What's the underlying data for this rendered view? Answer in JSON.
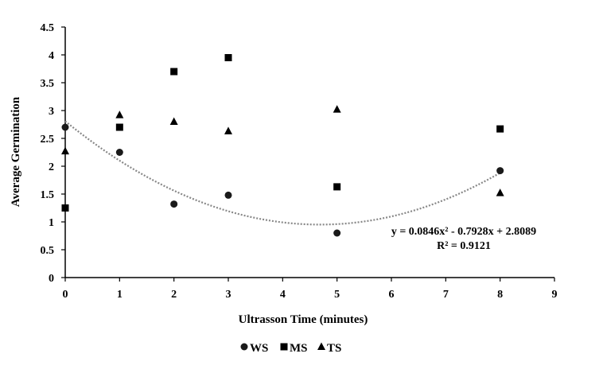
{
  "chart_data": {
    "type": "scatter",
    "title": "",
    "xlabel": "Ultrasson Time (minutes)",
    "ylabel": "Average Germination",
    "xlim": [
      0,
      9
    ],
    "ylim": [
      0,
      4.5
    ],
    "x_ticks": [
      "0",
      "1",
      "2",
      "3",
      "4",
      "5",
      "6",
      "7",
      "8",
      "9"
    ],
    "y_ticks": [
      "0",
      "0.5",
      "1",
      "1.5",
      "2",
      "2.5",
      "3",
      "3.5",
      "4",
      "4.5"
    ],
    "grid": false,
    "legend_position": "bottom",
    "series": [
      {
        "name": "WS",
        "marker": "circle",
        "color": "#1a1a1a",
        "x": [
          0,
          1,
          2,
          3,
          5,
          8
        ],
        "y": [
          2.7,
          2.25,
          1.32,
          1.48,
          0.8,
          1.92
        ]
      },
      {
        "name": "MS",
        "marker": "square",
        "color": "#000000",
        "x": [
          0,
          1,
          2,
          3,
          5,
          8
        ],
        "y": [
          1.25,
          2.7,
          3.7,
          3.95,
          1.63,
          2.67
        ]
      },
      {
        "name": "TS",
        "marker": "triangle",
        "color": "#000000",
        "x": [
          0,
          1,
          2,
          3,
          5,
          8
        ],
        "y": [
          2.27,
          2.92,
          2.8,
          2.63,
          3.02,
          1.52
        ]
      }
    ],
    "trendline": {
      "series": "WS",
      "type": "polynomial",
      "coefficients": [
        0.0846,
        -0.7928,
        2.8089
      ],
      "x_range": [
        0,
        8
      ],
      "color": "#888888",
      "style": "dotted",
      "equation_text": "y = 0.0846x² - 0.7928x + 2.8089",
      "r2_text": "R² = 0.9121"
    }
  }
}
